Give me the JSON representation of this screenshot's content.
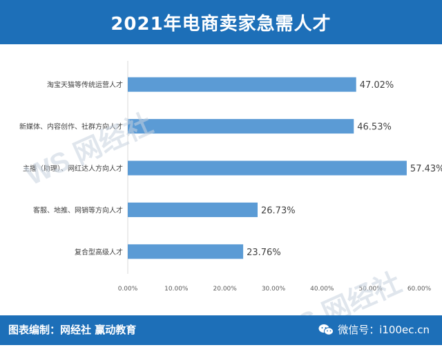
{
  "header": {
    "title": "2021年电商卖家急需人才"
  },
  "footer": {
    "credit": "图表编制：网经社  赢动教育",
    "wechat": "微信号：i100ec.cn"
  },
  "watermark": {
    "brand": "WS网经社"
  },
  "colors": {
    "header_bg": "#1d6fb8",
    "bar": "#5b9bd5"
  },
  "chart_data": {
    "type": "bar",
    "orientation": "horizontal",
    "title": "",
    "xlabel": "",
    "ylabel": "",
    "categories": [
      "淘宝天猫等传统运营人才",
      "新媒体、内容创作、社群方向人才",
      "主播（助理）、网红达人方向人才",
      "客服、地推、网销等方向人才",
      "复合型高级人才"
    ],
    "values": [
      47.02,
      46.53,
      57.43,
      26.73,
      23.76
    ],
    "data_labels": [
      "47.02%",
      "46.53%",
      "57.43%",
      "26.73%",
      "23.76%"
    ],
    "xlim": [
      0,
      60
    ],
    "xticks": [
      "0.00%",
      "10.00%",
      "20.00%",
      "30.00%",
      "40.00%",
      "50.00%",
      "60.00%"
    ],
    "grid": false,
    "legend": "none"
  }
}
